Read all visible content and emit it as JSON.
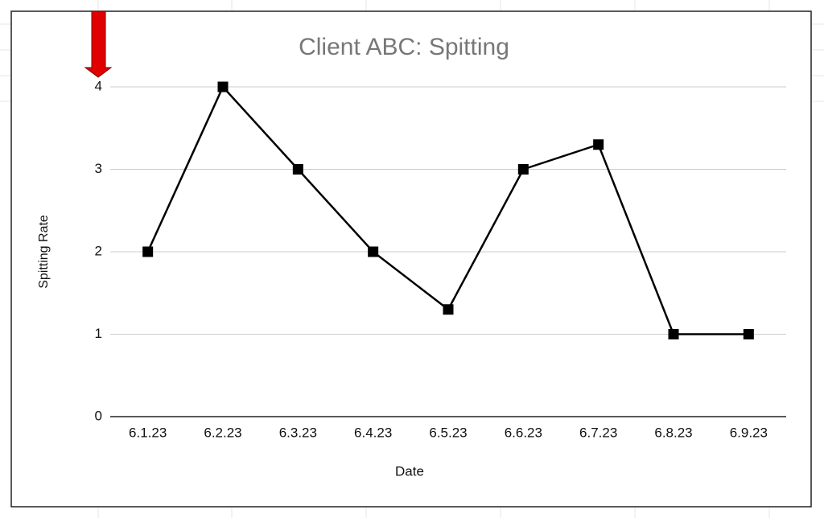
{
  "chart_data": {
    "type": "line",
    "title": "Client ABC: Spitting",
    "x_label": "Date",
    "y_label": "Spitting Rate",
    "categories": [
      "6.1.23",
      "6.2.23",
      "6.3.23",
      "6.4.23",
      "6.5.23",
      "6.6.23",
      "6.7.23",
      "6.8.23",
      "6.9.23"
    ],
    "series": [
      {
        "name": "Spitting Rate",
        "color": "#000000",
        "values": [
          2,
          4,
          3,
          2,
          1.3,
          3,
          3.3,
          1,
          1
        ]
      }
    ],
    "ylim": [
      0,
      4
    ],
    "yticks": [
      0,
      1,
      2,
      3,
      4
    ],
    "grid": true
  }
}
